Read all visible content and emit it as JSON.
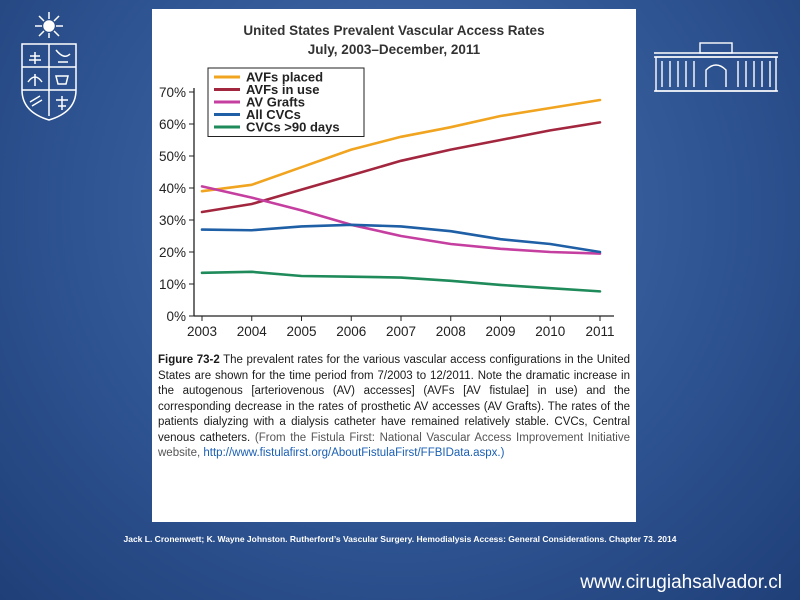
{
  "slide": {
    "citation": "Jack L. Cronenwett; K. Wayne Johnston. Rutherford’s Vascular Surgery. Hemodialysis Access: General Considerations. Chapter 73. 2014",
    "website": "www.cirugiahsalvador.cl"
  },
  "caption": {
    "figure_label": "Figure 73-2",
    "text": "The prevalent rates for the various vascular access configurations in the United States are shown for the time period from 7/2003 to 12/2011. Note the dramatic increase in the autogenous [arteriovenous (AV) accesses] (AVFs [AV fistulae] in use) and the corresponding decrease in the rates of prosthetic AV accesses (AV Grafts). The rates of the patients dialyzing with a dialysis catheter have remained relatively stable. CVCs, Central venous catheters.",
    "source": "(From the Fistula First: National Vascular Access Improvement Initiative website,",
    "url": "http://www.fistulafirst.org/AboutFistulaFirst/FFBIData.aspx.)"
  },
  "chart_data": {
    "type": "line",
    "title": "United States Prevalent Vascular Access Rates",
    "subtitle": "July, 2003–December, 2011",
    "xlabel": "",
    "ylabel": "",
    "x": [
      2003,
      2004,
      2005,
      2006,
      2007,
      2008,
      2009,
      2010,
      2011
    ],
    "x_tick_labels": [
      "2003",
      "2004",
      "2005",
      "2006",
      "2007",
      "2008",
      "2009",
      "2010",
      "2011"
    ],
    "y_tick_labels": [
      "0%",
      "10%",
      "20%",
      "30%",
      "40%",
      "50%",
      "60%",
      "70%"
    ],
    "ylim": [
      0,
      70
    ],
    "grid": false,
    "legend_position": "top-left",
    "series": [
      {
        "name": "AVFs placed",
        "color": "#f0a41f",
        "values": [
          39,
          41,
          46.5,
          52,
          56,
          59,
          62.5,
          65,
          67.5
        ]
      },
      {
        "name": "AVFs in use",
        "color": "#a3263f",
        "values": [
          32.5,
          35,
          39.5,
          44,
          48.5,
          52,
          55,
          58,
          60.5
        ]
      },
      {
        "name": "AV Grafts",
        "color": "#c53fa0",
        "values": [
          40.5,
          37,
          33,
          28.5,
          25,
          22.5,
          21,
          20,
          19.5
        ]
      },
      {
        "name": "All CVCs",
        "color": "#1f5fa6",
        "values": [
          27,
          26.8,
          28,
          28.5,
          28,
          26.5,
          24,
          22.5,
          20
        ]
      },
      {
        "name": "CVCs >90 days",
        "color": "#1f8a5a",
        "values": [
          13.5,
          13.8,
          12.5,
          12.3,
          12,
          11,
          9.7,
          8.7,
          7.7
        ]
      }
    ]
  }
}
